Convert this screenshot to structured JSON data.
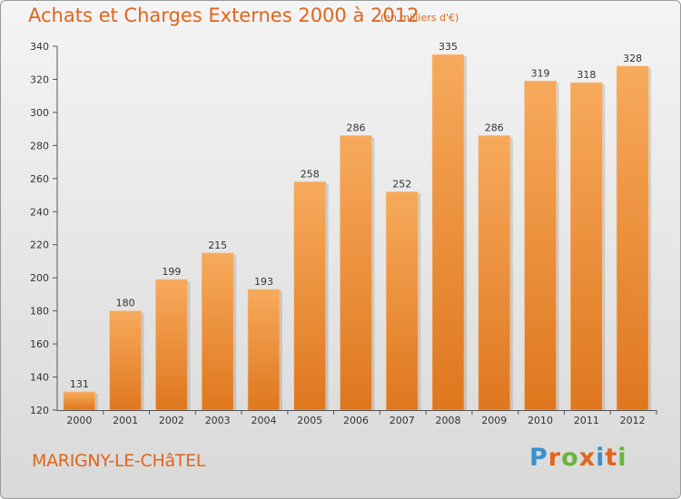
{
  "header": {
    "title": "Achats et Charges Externes 2000 à 2012",
    "subtitle": "(en milliers d'€)"
  },
  "footer": {
    "town": "MARIGNY-LE-CHâTEL",
    "logo_text": "Proxiti"
  },
  "colors": {
    "title": "#e0651c",
    "bar_light": "#f6a85a",
    "bar_dark": "#e0781f",
    "logo_letters": [
      "#3a8fd0",
      "#e0651c",
      "#68b53a",
      "#e0651c",
      "#3a8fd0",
      "#e0651c",
      "#68b53a"
    ]
  },
  "chart_data": {
    "type": "bar",
    "title": "Achats et Charges Externes 2000 à 2012",
    "ylabel": "(en milliers d'€)",
    "categories": [
      "2000",
      "2001",
      "2002",
      "2003",
      "2004",
      "2005",
      "2006",
      "2007",
      "2008",
      "2009",
      "2010",
      "2011",
      "2012"
    ],
    "values": [
      131,
      180,
      199,
      215,
      193,
      258,
      286,
      252,
      335,
      286,
      319,
      318,
      328
    ],
    "ylim": [
      120,
      340
    ],
    "yticks": [
      120,
      140,
      160,
      180,
      200,
      220,
      240,
      260,
      280,
      300,
      320,
      340
    ],
    "grid": false,
    "data_labels": true
  }
}
